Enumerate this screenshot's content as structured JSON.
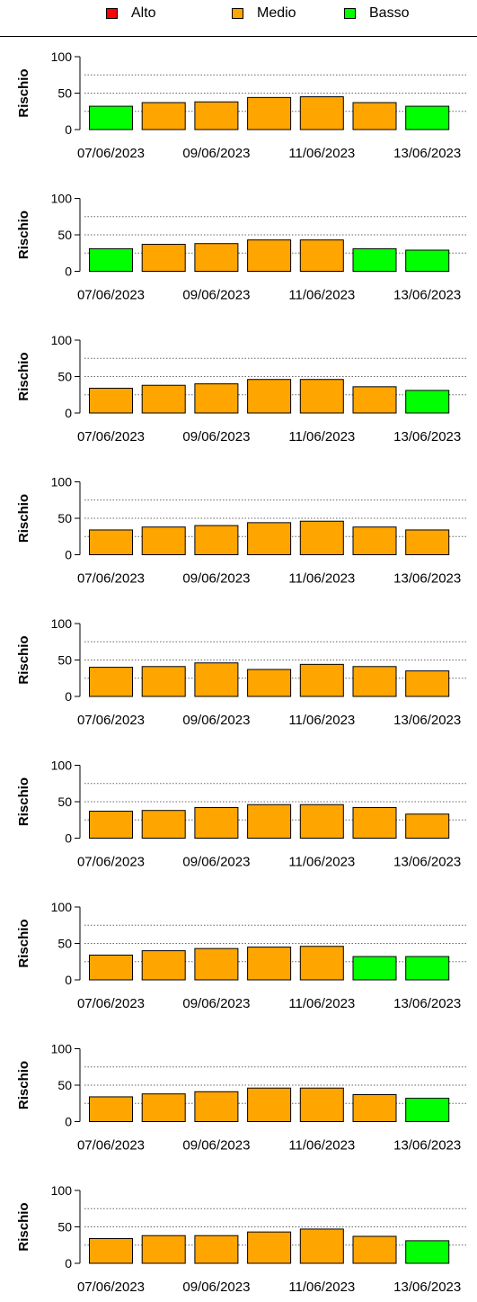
{
  "legend": [
    {
      "label": "Alto",
      "color": "#ff0000"
    },
    {
      "label": "Medio",
      "color": "#ffa500"
    },
    {
      "label": "Basso",
      "color": "#00ff00"
    }
  ],
  "chart_data": [
    {
      "type": "bar",
      "ylabel": "Rischio",
      "ylim": [
        0,
        100
      ],
      "yticks": [
        0,
        50,
        100
      ],
      "grid_y": [
        25,
        50,
        75
      ],
      "xtick_labels": [
        "07/06/2023",
        "09/06/2023",
        "11/06/2023",
        "13/06/2023"
      ],
      "categories": [
        "07/06/2023",
        "08/06/2023",
        "09/06/2023",
        "10/06/2023",
        "11/06/2023",
        "12/06/2023",
        "13/06/2023"
      ],
      "values": [
        32,
        37,
        38,
        44,
        45,
        37,
        32
      ],
      "levels": [
        "Basso",
        "Medio",
        "Medio",
        "Medio",
        "Medio",
        "Medio",
        "Basso"
      ]
    },
    {
      "type": "bar",
      "ylabel": "Rischio",
      "ylim": [
        0,
        100
      ],
      "yticks": [
        0,
        50,
        100
      ],
      "grid_y": [
        25,
        50,
        75
      ],
      "xtick_labels": [
        "07/06/2023",
        "09/06/2023",
        "11/06/2023",
        "13/06/2023"
      ],
      "categories": [
        "07/06/2023",
        "08/06/2023",
        "09/06/2023",
        "10/06/2023",
        "11/06/2023",
        "12/06/2023",
        "13/06/2023"
      ],
      "values": [
        31,
        37,
        38,
        43,
        43,
        31,
        29
      ],
      "levels": [
        "Basso",
        "Medio",
        "Medio",
        "Medio",
        "Medio",
        "Basso",
        "Basso"
      ]
    },
    {
      "type": "bar",
      "ylabel": "Rischio",
      "ylim": [
        0,
        100
      ],
      "yticks": [
        0,
        50,
        100
      ],
      "grid_y": [
        25,
        50,
        75
      ],
      "xtick_labels": [
        "07/06/2023",
        "09/06/2023",
        "11/06/2023",
        "13/06/2023"
      ],
      "categories": [
        "07/06/2023",
        "08/06/2023",
        "09/06/2023",
        "10/06/2023",
        "11/06/2023",
        "12/06/2023",
        "13/06/2023"
      ],
      "values": [
        34,
        38,
        40,
        46,
        46,
        36,
        31
      ],
      "levels": [
        "Medio",
        "Medio",
        "Medio",
        "Medio",
        "Medio",
        "Medio",
        "Basso"
      ]
    },
    {
      "type": "bar",
      "ylabel": "Rischio",
      "ylim": [
        0,
        100
      ],
      "yticks": [
        0,
        50,
        100
      ],
      "grid_y": [
        25,
        50,
        75
      ],
      "xtick_labels": [
        "07/06/2023",
        "09/06/2023",
        "11/06/2023",
        "13/06/2023"
      ],
      "categories": [
        "07/06/2023",
        "08/06/2023",
        "09/06/2023",
        "10/06/2023",
        "11/06/2023",
        "12/06/2023",
        "13/06/2023"
      ],
      "values": [
        34,
        38,
        40,
        44,
        46,
        38,
        34
      ],
      "levels": [
        "Medio",
        "Medio",
        "Medio",
        "Medio",
        "Medio",
        "Medio",
        "Medio"
      ]
    },
    {
      "type": "bar",
      "ylabel": "Rischio",
      "ylim": [
        0,
        100
      ],
      "yticks": [
        0,
        50,
        100
      ],
      "grid_y": [
        25,
        50,
        75
      ],
      "xtick_labels": [
        "07/06/2023",
        "09/06/2023",
        "11/06/2023",
        "13/06/2023"
      ],
      "categories": [
        "07/06/2023",
        "08/06/2023",
        "09/06/2023",
        "10/06/2023",
        "11/06/2023",
        "12/06/2023",
        "13/06/2023"
      ],
      "values": [
        40,
        41,
        46,
        37,
        44,
        41,
        35
      ],
      "levels": [
        "Medio",
        "Medio",
        "Medio",
        "Medio",
        "Medio",
        "Medio",
        "Medio"
      ]
    },
    {
      "type": "bar",
      "ylabel": "Rischio",
      "ylim": [
        0,
        100
      ],
      "yticks": [
        0,
        50,
        100
      ],
      "grid_y": [
        25,
        50,
        75
      ],
      "xtick_labels": [
        "07/06/2023",
        "09/06/2023",
        "11/06/2023",
        "13/06/2023"
      ],
      "categories": [
        "07/06/2023",
        "08/06/2023",
        "09/06/2023",
        "10/06/2023",
        "11/06/2023",
        "12/06/2023",
        "13/06/2023"
      ],
      "values": [
        37,
        38,
        42,
        46,
        46,
        42,
        33
      ],
      "levels": [
        "Medio",
        "Medio",
        "Medio",
        "Medio",
        "Medio",
        "Medio",
        "Medio"
      ]
    },
    {
      "type": "bar",
      "ylabel": "Rischio",
      "ylim": [
        0,
        100
      ],
      "yticks": [
        0,
        50,
        100
      ],
      "grid_y": [
        25,
        50,
        75
      ],
      "xtick_labels": [
        "07/06/2023",
        "09/06/2023",
        "11/06/2023",
        "13/06/2023"
      ],
      "categories": [
        "07/06/2023",
        "08/06/2023",
        "09/06/2023",
        "10/06/2023",
        "11/06/2023",
        "12/06/2023",
        "13/06/2023"
      ],
      "values": [
        34,
        40,
        43,
        45,
        46,
        32,
        32
      ],
      "levels": [
        "Medio",
        "Medio",
        "Medio",
        "Medio",
        "Medio",
        "Basso",
        "Basso"
      ]
    },
    {
      "type": "bar",
      "ylabel": "Rischio",
      "ylim": [
        0,
        100
      ],
      "yticks": [
        0,
        50,
        100
      ],
      "grid_y": [
        25,
        50,
        75
      ],
      "xtick_labels": [
        "07/06/2023",
        "09/06/2023",
        "11/06/2023",
        "13/06/2023"
      ],
      "categories": [
        "07/06/2023",
        "08/06/2023",
        "09/06/2023",
        "10/06/2023",
        "11/06/2023",
        "12/06/2023",
        "13/06/2023"
      ],
      "values": [
        34,
        38,
        41,
        46,
        46,
        37,
        32
      ],
      "levels": [
        "Medio",
        "Medio",
        "Medio",
        "Medio",
        "Medio",
        "Medio",
        "Basso"
      ]
    },
    {
      "type": "bar",
      "ylabel": "Rischio",
      "ylim": [
        0,
        100
      ],
      "yticks": [
        0,
        50,
        100
      ],
      "grid_y": [
        25,
        50,
        75
      ],
      "xtick_labels": [
        "07/06/2023",
        "09/06/2023",
        "11/06/2023",
        "13/06/2023"
      ],
      "categories": [
        "07/06/2023",
        "08/06/2023",
        "09/06/2023",
        "10/06/2023",
        "11/06/2023",
        "12/06/2023",
        "13/06/2023"
      ],
      "values": [
        34,
        38,
        38,
        43,
        47,
        37,
        31
      ],
      "levels": [
        "Medio",
        "Medio",
        "Medio",
        "Medio",
        "Medio",
        "Medio",
        "Basso"
      ]
    }
  ]
}
